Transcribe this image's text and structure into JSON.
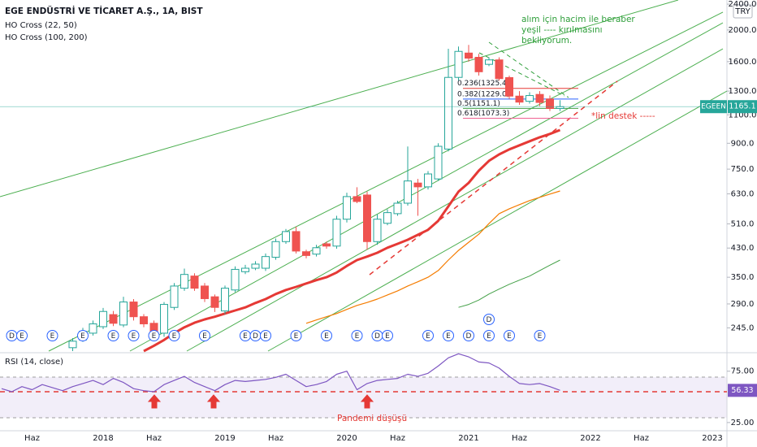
{
  "chart_data": {
    "type": "candlestick",
    "title": "EGE ENDÜSTRİ VE TİCARET A.Ş., 1A, BIST",
    "indicators": [
      "HO Cross (22, 50)",
      "HO Cross (100, 200)"
    ],
    "currency": "TRY",
    "price_tag": "EGEEN",
    "log_scale": true,
    "up_color": "#26a69a",
    "down_color": "#ef5350",
    "categories": [
      null,
      null,
      null,
      "Haz",
      null,
      null,
      null,
      null,
      null,
      null,
      "2018",
      null,
      null,
      null,
      null,
      "Haz",
      null,
      null,
      null,
      null,
      null,
      null,
      "2019",
      null,
      null,
      null,
      null,
      "Haz",
      null,
      null,
      null,
      null,
      null,
      null,
      "2020",
      null,
      null,
      null,
      null,
      "Haz",
      null,
      null,
      null,
      null,
      null,
      null,
      "2021",
      null,
      null,
      null,
      null,
      "Haz",
      null,
      null,
      null,
      null,
      null,
      null,
      "2022",
      null,
      null,
      null,
      null,
      "Haz",
      null,
      null,
      null,
      null,
      null,
      null,
      "2023",
      null
    ],
    "open": [
      null,
      null,
      null,
      null,
      null,
      null,
      null,
      213,
      225,
      236,
      247,
      269,
      250,
      294,
      265,
      253,
      236,
      283,
      324,
      353,
      329,
      305,
      276,
      320,
      364,
      373,
      373,
      403,
      450,
      483,
      419,
      412,
      443,
      436,
      527,
      618,
      625,
      450,
      512,
      548,
      590,
      680,
      662,
      700,
      864,
      1432,
      1700,
      1650,
      1570,
      1620,
      1430,
      1255,
      1210,
      1270,
      1230,
      1150,
      null,
      null,
      null,
      null,
      null,
      null,
      null,
      null,
      null,
      null,
      null,
      null,
      null,
      null,
      null,
      null
    ],
    "high": [
      null,
      null,
      null,
      null,
      null,
      null,
      null,
      228,
      245,
      258,
      282,
      276,
      305,
      300,
      270,
      258,
      294,
      336,
      372,
      360,
      336,
      310,
      330,
      378,
      382,
      392,
      414,
      460,
      492,
      500,
      425,
      440,
      450,
      540,
      635,
      660,
      640,
      545,
      565,
      600,
      880,
      700,
      740,
      900,
      1752,
      1780,
      1800,
      1690,
      1650,
      1650,
      1450,
      1300,
      1290,
      1300,
      1260,
      1220,
      null,
      null,
      null,
      null,
      null,
      null,
      null,
      null,
      null,
      null,
      null,
      null,
      null,
      null,
      null,
      null
    ],
    "low": [
      null,
      null,
      null,
      null,
      null,
      null,
      null,
      208,
      222,
      232,
      243,
      248,
      246,
      258,
      246,
      228,
      230,
      278,
      318,
      318,
      294,
      274,
      270,
      315,
      358,
      368,
      366,
      396,
      443,
      414,
      400,
      405,
      428,
      428,
      515,
      590,
      425,
      440,
      505,
      540,
      580,
      540,
      650,
      690,
      850,
      1400,
      1600,
      1450,
      1550,
      1400,
      1230,
      1180,
      1190,
      1170,
      1130,
      1130,
      null,
      null,
      null,
      null,
      null,
      null,
      null,
      null,
      null,
      null,
      null,
      null,
      null,
      null,
      null,
      null
    ],
    "close": [
      null,
      null,
      null,
      null,
      null,
      null,
      null,
      223,
      239,
      252,
      275,
      253,
      294,
      265,
      252,
      236,
      289,
      329,
      357,
      324,
      301,
      283,
      324,
      370,
      373,
      384,
      405,
      450,
      483,
      421,
      408,
      431,
      436,
      527,
      618,
      597,
      450,
      527,
      552,
      590,
      690,
      662,
      725,
      881,
      1432,
      1720,
      1640,
      1490,
      1620,
      1420,
      1255,
      1203,
      1260,
      1200,
      1150,
      1165.1,
      null,
      null,
      null,
      null,
      null,
      null,
      null,
      null,
      null,
      null,
      null,
      null,
      null,
      null,
      null,
      null
    ],
    "ylim": [
      205.6,
      2471
    ],
    "yticks": [
      {
        "value": 245,
        "label": "245.0"
      },
      {
        "value": 290,
        "label": "290.0"
      },
      {
        "value": 350,
        "label": "350.0"
      },
      {
        "value": 430,
        "label": "430.0"
      },
      {
        "value": 510,
        "label": "510.0"
      },
      {
        "value": 630,
        "label": "630.0"
      },
      {
        "value": 750,
        "label": "750.0"
      },
      {
        "value": 900,
        "label": "900.0"
      },
      {
        "value": 1100,
        "label": "1100.0"
      },
      {
        "value": 1300,
        "label": "1300.0"
      },
      {
        "value": 1600,
        "label": "1600.0"
      },
      {
        "value": 2000,
        "label": "2000.0"
      },
      {
        "value": 2400,
        "label": "2400.0"
      }
    ],
    "overlays": [
      {
        "color": "#e53935",
        "values": [
          null,
          null,
          null,
          null,
          null,
          null,
          null,
          null,
          null,
          null,
          null,
          null,
          null,
          null,
          208,
          216,
          225,
          236,
          246,
          254,
          260,
          265,
          271,
          277,
          283,
          292,
          300,
          311,
          320,
          327,
          335,
          343,
          350,
          362,
          379,
          395,
          405,
          416,
          431,
          443,
          456,
          472,
          489,
          521,
          577,
          640,
          681,
          742,
          795,
          832,
          862,
          887,
          913,
          939,
          961,
          988,
          null,
          null,
          null,
          null,
          null,
          null,
          null,
          null,
          null,
          null,
          null,
          null,
          null,
          null,
          null,
          null
        ]
      },
      {
        "color": "#f57c00",
        "values": [
          null,
          null,
          null,
          null,
          null,
          null,
          null,
          null,
          null,
          null,
          null,
          null,
          null,
          null,
          null,
          null,
          null,
          null,
          null,
          null,
          null,
          null,
          null,
          null,
          null,
          null,
          null,
          null,
          null,
          null,
          253,
          259,
          265,
          271,
          279,
          287,
          293,
          300,
          309,
          318,
          329,
          339,
          350,
          367,
          395,
          423,
          448,
          474,
          511,
          548,
          567,
          584,
          601,
          615,
          629,
          643,
          null,
          null,
          null,
          null,
          null,
          null,
          null,
          null,
          null,
          null,
          null,
          null,
          null,
          null,
          null,
          null
        ]
      },
      {
        "color": "#43a047",
        "values": [
          null,
          null,
          null,
          null,
          null,
          null,
          null,
          null,
          null,
          null,
          null,
          null,
          null,
          null,
          null,
          null,
          null,
          null,
          null,
          null,
          null,
          null,
          null,
          null,
          null,
          null,
          null,
          null,
          null,
          null,
          null,
          null,
          null,
          null,
          null,
          null,
          null,
          null,
          null,
          null,
          null,
          null,
          null,
          null,
          null,
          283,
          289,
          298,
          311,
          322,
          333,
          343,
          353,
          367,
          381,
          395,
          null,
          null,
          null,
          null,
          null,
          null,
          null,
          null,
          null,
          null,
          null,
          null,
          null,
          null,
          null,
          null
        ]
      }
    ],
    "fib_levels": [
      {
        "value": 1325.4,
        "label": "0.236(1325.4)",
        "color": "#e53935"
      },
      {
        "value": 1229.0,
        "label": "0.382(1229.0)",
        "color": "#2962ff"
      },
      {
        "value": 1151.1,
        "label": "0.5(1151.1)",
        "color": "#43a047"
      },
      {
        "value": 1073.3,
        "label": "0.618(1073.3)",
        "color": "#f06292"
      }
    ],
    "events": [
      null,
      [
        "D"
      ],
      [
        "E"
      ],
      null,
      null,
      [
        "E"
      ],
      null,
      null,
      [
        "E"
      ],
      null,
      null,
      [
        "E"
      ],
      null,
      [
        "E"
      ],
      null,
      [
        "E"
      ],
      null,
      [
        "E"
      ],
      null,
      null,
      [
        "E"
      ],
      null,
      null,
      null,
      [
        "E"
      ],
      [
        "D"
      ],
      [
        "E"
      ],
      null,
      null,
      [
        "E"
      ],
      null,
      null,
      [
        "E"
      ],
      null,
      null,
      [
        "E"
      ],
      null,
      [
        "D"
      ],
      [
        "E"
      ],
      null,
      null,
      null,
      [
        "E"
      ],
      null,
      [
        "E"
      ],
      null,
      [
        "D"
      ],
      null,
      [
        "E",
        "D"
      ],
      null,
      [
        "E"
      ],
      null,
      null,
      [
        "E"
      ],
      null,
      null,
      null,
      null,
      null,
      null,
      null,
      null,
      null,
      null,
      null,
      null,
      null,
      null,
      null,
      null,
      null,
      null
    ],
    "annotations": [
      {
        "lines": [
          "alım için hacim ile beraber",
          "yeşil ---- kırılmasını",
          "bekliyorum."
        ],
        "color": "#2e9e3a"
      },
      {
        "lines": [
          "*lin destek -----"
        ],
        "color": "#e53935"
      },
      {
        "lines": [
          "Pandemi düşüşü"
        ],
        "color": "#e53935"
      }
    ],
    "rsi": {
      "title": "RSI (14, close)",
      "color": "#7e57c2",
      "values": [
        58,
        55,
        60,
        57,
        62,
        59,
        56,
        60,
        63,
        66,
        62,
        68,
        64,
        58,
        56,
        55,
        62,
        66,
        70,
        64,
        60,
        56,
        62,
        66,
        65,
        66,
        67,
        69,
        72,
        66,
        60,
        62,
        65,
        72,
        75,
        57,
        63,
        66,
        67,
        68,
        72,
        70,
        73,
        80,
        88,
        92,
        89,
        84,
        83,
        78,
        70,
        63,
        62,
        63,
        60,
        56.33,
        null,
        null,
        null,
        null,
        null,
        null,
        null,
        null,
        null,
        null,
        null,
        null,
        null,
        null,
        null,
        null
      ],
      "ylim": [
        17,
        93
      ],
      "yticks": [
        {
          "value": 75,
          "label": "75.00"
        },
        {
          "value": 25,
          "label": "25.00"
        }
      ]
    }
  }
}
